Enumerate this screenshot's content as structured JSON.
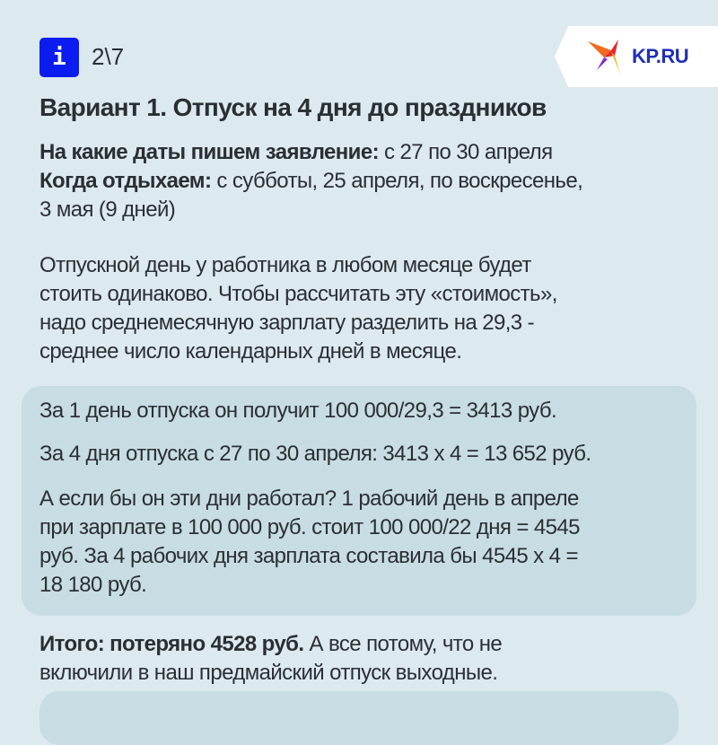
{
  "header": {
    "info_icon": "i",
    "page_counter": "2\\7",
    "logo_text": "KP.RU"
  },
  "title": "Вариант 1. Отпуск на 4 дня до праздников",
  "dates": {
    "label1": "На какие даты пишем заявление:",
    "value1": " с 27 по 30 апреля",
    "label2": "Когда отдыхаем:",
    "value2": " с субботы, 25 апреля, по воскресенье,",
    "value2_cont": "3 мая (9 дней)"
  },
  "explanation": [
    "Отпускной день у работника в любом месяце будет",
    "стоить одинаково. Чтобы рассчитать эту «стоимость»,",
    "надо среднемесячную зарплату разделить на 29,3 -",
    "среднее число календарных дней в месяце."
  ],
  "calc_box": {
    "line1": "За 1 день отпуска он получит 100 000/29,3 = 3413 руб.",
    "line2": "За 4 дня отпуска с 27 по 30 апреля:  3413 х 4 = 13 652 руб.",
    "para3": [
      "А если бы он эти дни работал? 1 рабочий день в апреле",
      "при зарплате в 100 000 руб. стоит 100 000/22 дня = 4545",
      "руб. За 4 рабочих дня зарплата составила бы 4545 х 4 =",
      "18 180 руб."
    ]
  },
  "total": {
    "bold": "Итого: потеряно 4528 руб.",
    "rest": " А все потому, что не",
    "cont": "включили в наш предмайский отпуск выходные."
  },
  "colors": {
    "background": "#dce9ef",
    "box": "#c8dce4",
    "badge": "#0a1cf0",
    "text": "#2a2f33"
  }
}
